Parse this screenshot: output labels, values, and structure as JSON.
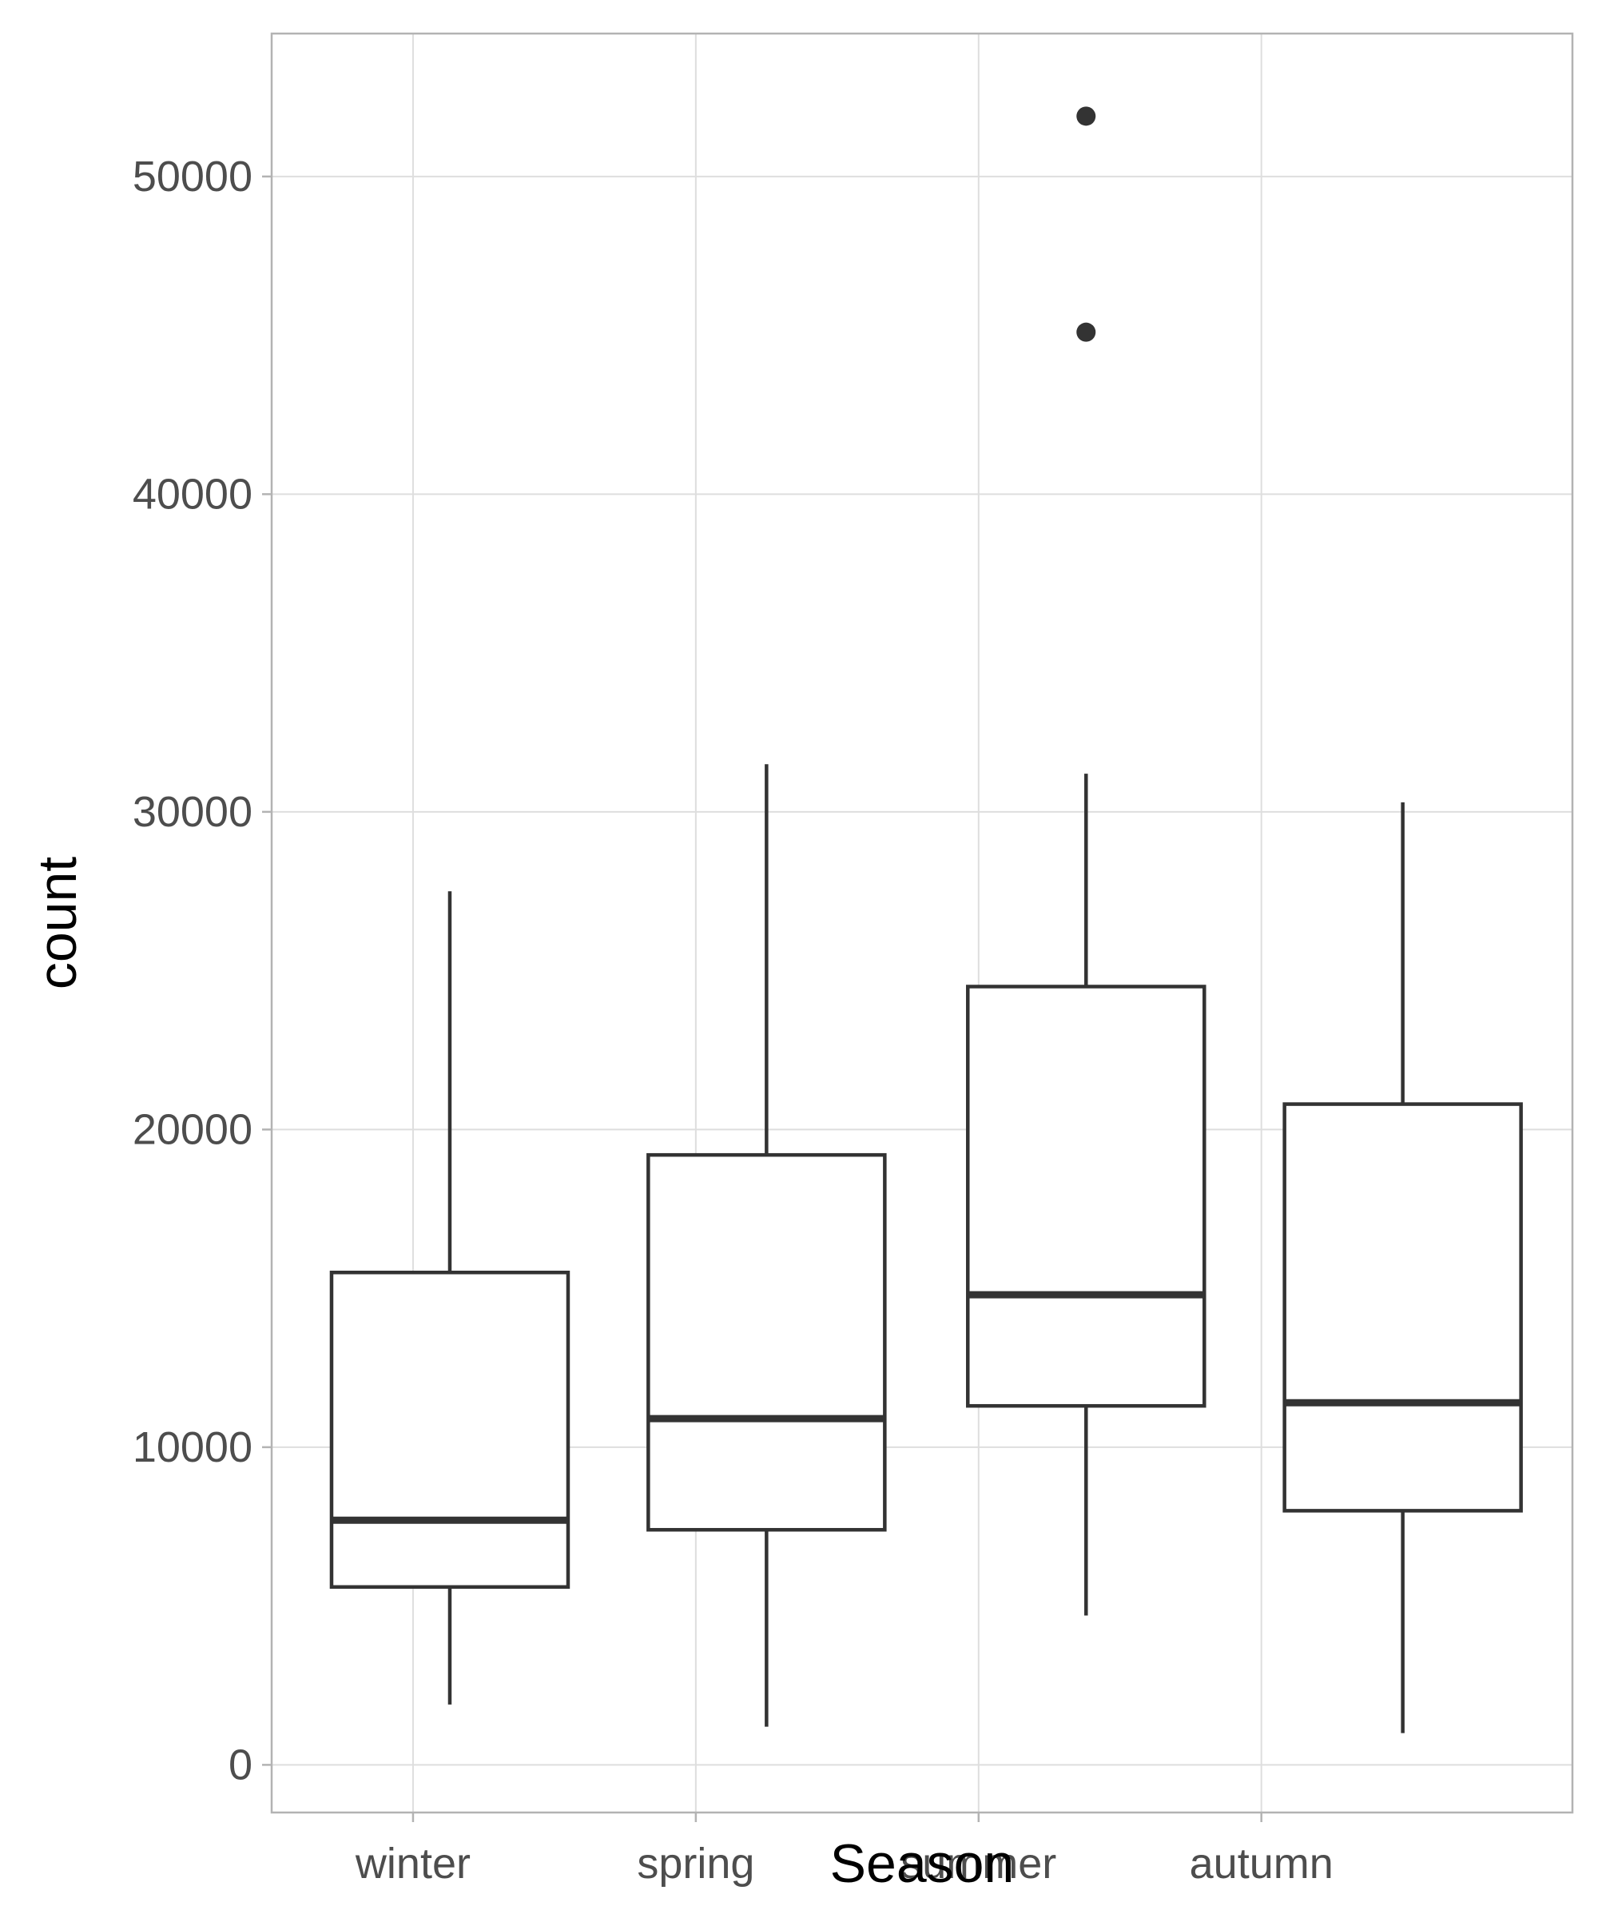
{
  "chart_data": {
    "type": "boxplot",
    "xlabel": "Season",
    "ylabel": "count",
    "ylim": [
      -1500,
      54500
    ],
    "yticks": [
      0,
      10000,
      20000,
      30000,
      40000,
      50000
    ],
    "x_grid_positions": [
      1,
      2,
      3,
      4
    ],
    "xtick_labels": [
      "winter",
      "spring",
      "summer",
      "autumn"
    ],
    "grid": true,
    "legend": "none",
    "boxes": [
      {
        "category": "winter",
        "position": 1.13,
        "whisker_low": 1900,
        "q1": 5600,
        "median": 7700,
        "q3": 15500,
        "whisker_high": 27500,
        "outliers": []
      },
      {
        "category": "spring",
        "position": 2.25,
        "whisker_low": 1200,
        "q1": 7400,
        "median": 10900,
        "q3": 19200,
        "whisker_high": 31500,
        "outliers": []
      },
      {
        "category": "summer",
        "position": 3.38,
        "whisker_low": 4700,
        "q1": 11300,
        "median": 14800,
        "q3": 24500,
        "whisker_high": 31200,
        "outliers": [
          45100,
          51900
        ]
      },
      {
        "category": "autumn",
        "position": 4.5,
        "whisker_low": 1000,
        "q1": 8000,
        "median": 11400,
        "q3": 20800,
        "whisker_high": 30300,
        "outliers": []
      }
    ],
    "colors": {
      "box_line": "#333333",
      "box_fill": "#ffffff",
      "grid": "#dedede",
      "border": "#b3b3b3"
    }
  }
}
